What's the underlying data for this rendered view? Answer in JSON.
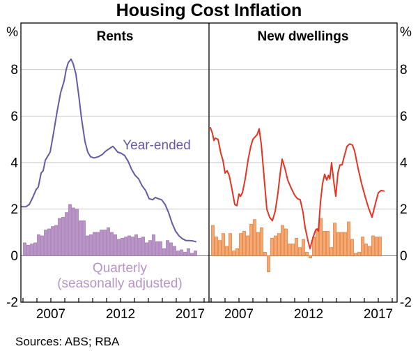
{
  "title": "Housing Cost Inflation",
  "footer": {
    "sources": "Sources: ABS; RBA"
  },
  "axes": {
    "unit_left": "%",
    "unit_right": "%",
    "y_tick_labels": [
      "8",
      "6",
      "4",
      "2",
      "0",
      "-2"
    ],
    "y_tick_values": [
      8,
      6,
      4,
      2,
      0,
      -2
    ],
    "gridline_values": [
      8,
      6,
      4,
      2,
      0
    ],
    "ylim": [
      -2,
      10
    ],
    "x_tick_labels": [
      "2007",
      "2012",
      "2017"
    ],
    "x_tick_years": [
      2007,
      2012,
      2017
    ],
    "grid_color": "#c6c6c6",
    "zero_line_color": "#808080",
    "frame_color": "#000000"
  },
  "chart_data": [
    {
      "type": "bar+line",
      "panel_title": "Rents",
      "line": {
        "label": "Year-ended",
        "color": "#6858a6",
        "points": [
          [
            2004.9,
            2.1
          ],
          [
            2005.2,
            2.1
          ],
          [
            2005.45,
            2.2
          ],
          [
            2005.7,
            2.5
          ],
          [
            2005.95,
            2.85
          ],
          [
            2006.1,
            2.95
          ],
          [
            2006.3,
            3.55
          ],
          [
            2006.45,
            3.65
          ],
          [
            2006.6,
            4.1
          ],
          [
            2006.8,
            4.3
          ],
          [
            2006.95,
            4.45
          ],
          [
            2007.2,
            5.3
          ],
          [
            2007.45,
            6.2
          ],
          [
            2007.7,
            7.0
          ],
          [
            2007.95,
            7.5
          ],
          [
            2008.1,
            8.0
          ],
          [
            2008.25,
            8.3
          ],
          [
            2008.45,
            8.45
          ],
          [
            2008.6,
            8.25
          ],
          [
            2008.8,
            7.8
          ],
          [
            2009.0,
            6.9
          ],
          [
            2009.2,
            5.9
          ],
          [
            2009.45,
            4.9
          ],
          [
            2009.65,
            4.45
          ],
          [
            2009.85,
            4.25
          ],
          [
            2010.1,
            4.2
          ],
          [
            2010.4,
            4.25
          ],
          [
            2010.7,
            4.35
          ],
          [
            2010.95,
            4.5
          ],
          [
            2011.2,
            4.6
          ],
          [
            2011.45,
            4.7
          ],
          [
            2011.6,
            4.6
          ],
          [
            2011.8,
            4.45
          ],
          [
            2012.05,
            4.4
          ],
          [
            2012.3,
            4.3
          ],
          [
            2012.55,
            4.05
          ],
          [
            2012.8,
            3.7
          ],
          [
            2013.05,
            3.45
          ],
          [
            2013.3,
            3.3
          ],
          [
            2013.55,
            3.0
          ],
          [
            2013.8,
            2.8
          ],
          [
            2014.05,
            2.45
          ],
          [
            2014.3,
            2.4
          ],
          [
            2014.5,
            2.5
          ],
          [
            2014.7,
            2.45
          ],
          [
            2014.95,
            2.4
          ],
          [
            2015.2,
            2.2
          ],
          [
            2015.45,
            1.85
          ],
          [
            2015.7,
            1.4
          ],
          [
            2015.95,
            1.05
          ],
          [
            2016.2,
            0.85
          ],
          [
            2016.45,
            0.72
          ],
          [
            2016.7,
            0.65
          ],
          [
            2016.95,
            0.65
          ],
          [
            2017.2,
            0.63
          ],
          [
            2017.4,
            0.6
          ]
        ]
      },
      "bars": {
        "label_lines": [
          "Quarterly",
          "(seasonally adjusted)"
        ],
        "fill": "#b995c7",
        "edge": "#a47cb3",
        "label_color": "#b794c6",
        "start_year": 2005,
        "frequency": "quarterly",
        "values": [
          0.55,
          0.45,
          0.5,
          0.55,
          0.9,
          0.85,
          1.1,
          1.15,
          1.25,
          1.3,
          1.6,
          1.65,
          1.85,
          2.2,
          2.05,
          2.0,
          1.5,
          1.5,
          0.85,
          0.9,
          1.0,
          1.0,
          1.1,
          1.1,
          1.2,
          1.0,
          0.9,
          0.7,
          0.75,
          0.8,
          0.85,
          0.8,
          0.9,
          0.75,
          0.8,
          0.55,
          0.65,
          0.9,
          0.6,
          0.6,
          0.3,
          0.65,
          0.55,
          0.4,
          0.2,
          0.25,
          0.15,
          0.3,
          0.1,
          0.2
        ]
      }
    },
    {
      "type": "bar+line",
      "panel_title": "New dwellings",
      "line": {
        "label": "",
        "color": "#e23323",
        "points": [
          [
            2004.95,
            5.5
          ],
          [
            2005.1,
            5.25
          ],
          [
            2005.2,
            4.95
          ],
          [
            2005.3,
            5.05
          ],
          [
            2005.5,
            5.0
          ],
          [
            2005.7,
            4.4
          ],
          [
            2005.85,
            4.1
          ],
          [
            2006.0,
            3.55
          ],
          [
            2006.15,
            3.65
          ],
          [
            2006.3,
            3.45
          ],
          [
            2006.5,
            2.85
          ],
          [
            2006.7,
            2.2
          ],
          [
            2006.85,
            2.15
          ],
          [
            2007.0,
            2.65
          ],
          [
            2007.1,
            2.55
          ],
          [
            2007.25,
            2.7
          ],
          [
            2007.45,
            3.3
          ],
          [
            2007.65,
            4.1
          ],
          [
            2007.85,
            4.7
          ],
          [
            2008.0,
            5.0
          ],
          [
            2008.15,
            5.1
          ],
          [
            2008.3,
            5.2
          ],
          [
            2008.45,
            5.45
          ],
          [
            2008.6,
            4.8
          ],
          [
            2008.8,
            3.4
          ],
          [
            2009.0,
            2.0
          ],
          [
            2009.2,
            1.65
          ],
          [
            2009.4,
            1.5
          ],
          [
            2009.6,
            1.9
          ],
          [
            2009.8,
            2.7
          ],
          [
            2009.95,
            3.5
          ],
          [
            2010.1,
            4.15
          ],
          [
            2010.3,
            3.75
          ],
          [
            2010.5,
            3.25
          ],
          [
            2010.75,
            2.9
          ],
          [
            2011.0,
            2.6
          ],
          [
            2011.2,
            2.45
          ],
          [
            2011.4,
            2.4
          ],
          [
            2011.6,
            1.85
          ],
          [
            2011.75,
            1.2
          ],
          [
            2011.95,
            0.65
          ],
          [
            2012.1,
            0.3
          ],
          [
            2012.3,
            0.75
          ],
          [
            2012.5,
            1.1
          ],
          [
            2012.6,
            1.15
          ],
          [
            2012.7,
            1.05
          ],
          [
            2012.85,
            2.3
          ],
          [
            2013.0,
            3.1
          ],
          [
            2013.15,
            3.5
          ],
          [
            2013.3,
            3.25
          ],
          [
            2013.42,
            3.45
          ],
          [
            2013.52,
            3.3
          ],
          [
            2013.65,
            4.0
          ],
          [
            2013.8,
            3.2
          ],
          [
            2013.95,
            2.55
          ],
          [
            2014.1,
            3.55
          ],
          [
            2014.25,
            3.9
          ],
          [
            2014.4,
            3.9
          ],
          [
            2014.55,
            4.25
          ],
          [
            2014.75,
            4.7
          ],
          [
            2014.95,
            4.8
          ],
          [
            2015.15,
            4.75
          ],
          [
            2015.3,
            4.5
          ],
          [
            2015.55,
            3.75
          ],
          [
            2015.8,
            3.1
          ],
          [
            2016.05,
            2.55
          ],
          [
            2016.3,
            2.05
          ],
          [
            2016.55,
            1.65
          ],
          [
            2016.8,
            2.25
          ],
          [
            2017.0,
            2.7
          ],
          [
            2017.2,
            2.8
          ],
          [
            2017.4,
            2.78
          ]
        ]
      },
      "bars": {
        "label_lines": [],
        "fill": "#f6a873",
        "edge": "#e2823f",
        "label_color": "#f6a873",
        "start_year": 2005,
        "frequency": "quarterly",
        "values": [
          1.3,
          0.8,
          0.65,
          0.95,
          0.4,
          0.95,
          0.2,
          0.3,
          0.95,
          1.05,
          0.85,
          1.35,
          1.55,
          1.0,
          1.2,
          0.15,
          -0.7,
          0.75,
          0.85,
          0.95,
          1.3,
          1.15,
          0.5,
          0.5,
          0.75,
          0.35,
          0.7,
          0.15,
          -0.1,
          0.8,
          1.15,
          1.6,
          1.05,
          1.05,
          0.35,
          1.4,
          1.0,
          1.0,
          1.0,
          1.45,
          0.7,
          0.1,
          0.15,
          0.8,
          0.5,
          0.4,
          0.85,
          0.8,
          0.8
        ]
      }
    }
  ]
}
